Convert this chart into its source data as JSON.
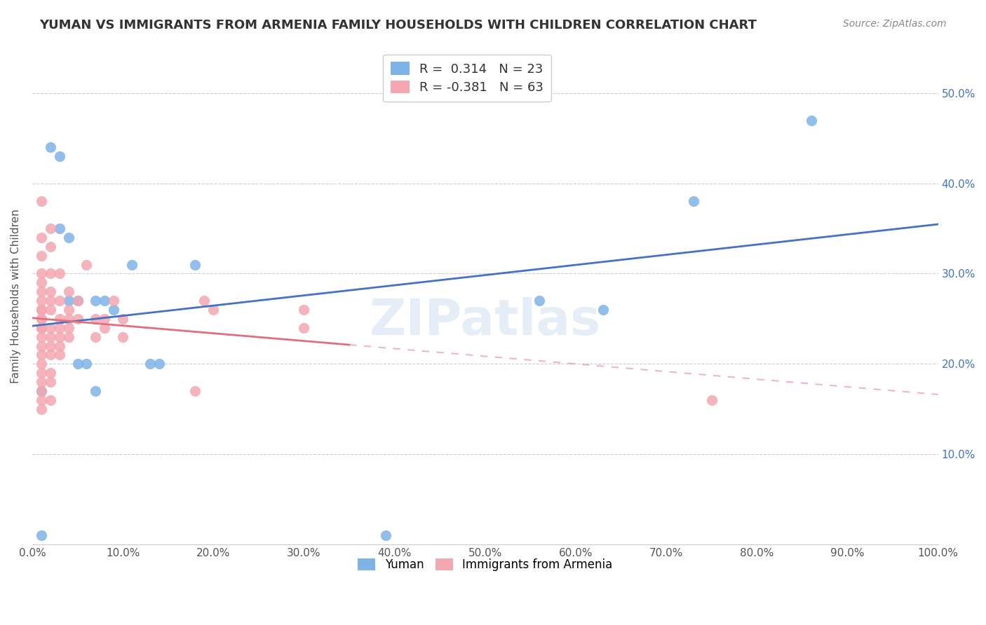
{
  "title": "YUMAN VS IMMIGRANTS FROM ARMENIA FAMILY HOUSEHOLDS WITH CHILDREN CORRELATION CHART",
  "source": "Source: ZipAtlas.com",
  "ylabel": "Family Households with Children",
  "xlabel": "",
  "xlim": [
    0.0,
    1.0
  ],
  "ylim": [
    0.0,
    0.55
  ],
  "xticks": [
    0.0,
    0.1,
    0.2,
    0.3,
    0.4,
    0.5,
    0.6,
    0.7,
    0.8,
    0.9,
    1.0
  ],
  "yticks": [
    0.0,
    0.1,
    0.2,
    0.3,
    0.4,
    0.5
  ],
  "ytick_labels": [
    "",
    "10.0%",
    "20.0%",
    "30.0%",
    "40.0%",
    "50.0%"
  ],
  "xtick_labels": [
    "0.0%",
    "10.0%",
    "20.0%",
    "30.0%",
    "40.0%",
    "50.0%",
    "60.0%",
    "70.0%",
    "80.0%",
    "90.0%",
    "100.0%"
  ],
  "legend_yuman": "Yuman",
  "legend_armenia": "Immigrants from Armenia",
  "R_yuman": 0.314,
  "N_yuman": 23,
  "R_armenia": -0.381,
  "N_armenia": 63,
  "blue_color": "#7EB3E8",
  "pink_color": "#F4A7B0",
  "blue_line_color": "#4472C4",
  "pink_line_color": "#E07080",
  "watermark": "ZIPatlas",
  "yuman_points": [
    [
      0.01,
      0.01
    ],
    [
      0.01,
      0.17
    ],
    [
      0.02,
      0.44
    ],
    [
      0.03,
      0.43
    ],
    [
      0.03,
      0.35
    ],
    [
      0.04,
      0.27
    ],
    [
      0.04,
      0.34
    ],
    [
      0.05,
      0.27
    ],
    [
      0.05,
      0.2
    ],
    [
      0.06,
      0.2
    ],
    [
      0.07,
      0.27
    ],
    [
      0.07,
      0.17
    ],
    [
      0.08,
      0.27
    ],
    [
      0.09,
      0.26
    ],
    [
      0.11,
      0.31
    ],
    [
      0.13,
      0.2
    ],
    [
      0.14,
      0.2
    ],
    [
      0.18,
      0.31
    ],
    [
      0.39,
      0.01
    ],
    [
      0.56,
      0.27
    ],
    [
      0.63,
      0.26
    ],
    [
      0.73,
      0.38
    ],
    [
      0.86,
      0.47
    ]
  ],
  "armenia_points": [
    [
      0.01,
      0.38
    ],
    [
      0.01,
      0.34
    ],
    [
      0.01,
      0.32
    ],
    [
      0.01,
      0.3
    ],
    [
      0.01,
      0.29
    ],
    [
      0.01,
      0.28
    ],
    [
      0.01,
      0.27
    ],
    [
      0.01,
      0.26
    ],
    [
      0.01,
      0.26
    ],
    [
      0.01,
      0.25
    ],
    [
      0.01,
      0.25
    ],
    [
      0.01,
      0.24
    ],
    [
      0.01,
      0.24
    ],
    [
      0.01,
      0.23
    ],
    [
      0.01,
      0.22
    ],
    [
      0.01,
      0.21
    ],
    [
      0.01,
      0.2
    ],
    [
      0.01,
      0.19
    ],
    [
      0.01,
      0.18
    ],
    [
      0.01,
      0.17
    ],
    [
      0.01,
      0.16
    ],
    [
      0.01,
      0.15
    ],
    [
      0.02,
      0.35
    ],
    [
      0.02,
      0.33
    ],
    [
      0.02,
      0.3
    ],
    [
      0.02,
      0.28
    ],
    [
      0.02,
      0.27
    ],
    [
      0.02,
      0.26
    ],
    [
      0.02,
      0.24
    ],
    [
      0.02,
      0.23
    ],
    [
      0.02,
      0.22
    ],
    [
      0.02,
      0.21
    ],
    [
      0.02,
      0.19
    ],
    [
      0.02,
      0.18
    ],
    [
      0.02,
      0.16
    ],
    [
      0.03,
      0.3
    ],
    [
      0.03,
      0.27
    ],
    [
      0.03,
      0.25
    ],
    [
      0.03,
      0.24
    ],
    [
      0.03,
      0.23
    ],
    [
      0.03,
      0.22
    ],
    [
      0.03,
      0.21
    ],
    [
      0.04,
      0.28
    ],
    [
      0.04,
      0.26
    ],
    [
      0.04,
      0.25
    ],
    [
      0.04,
      0.24
    ],
    [
      0.04,
      0.23
    ],
    [
      0.05,
      0.27
    ],
    [
      0.05,
      0.25
    ],
    [
      0.06,
      0.31
    ],
    [
      0.07,
      0.25
    ],
    [
      0.07,
      0.23
    ],
    [
      0.08,
      0.25
    ],
    [
      0.08,
      0.24
    ],
    [
      0.09,
      0.27
    ],
    [
      0.1,
      0.25
    ],
    [
      0.1,
      0.23
    ],
    [
      0.18,
      0.17
    ],
    [
      0.19,
      0.27
    ],
    [
      0.2,
      0.26
    ],
    [
      0.3,
      0.26
    ],
    [
      0.3,
      0.24
    ],
    [
      0.75,
      0.16
    ]
  ]
}
